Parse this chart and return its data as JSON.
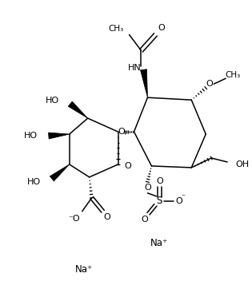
{
  "bg": "#ffffff",
  "lc": "#000000",
  "figsize": [
    3.15,
    3.62
  ],
  "dpi": 100,
  "xlim": [
    0,
    315
  ],
  "ylim": [
    0,
    362
  ]
}
